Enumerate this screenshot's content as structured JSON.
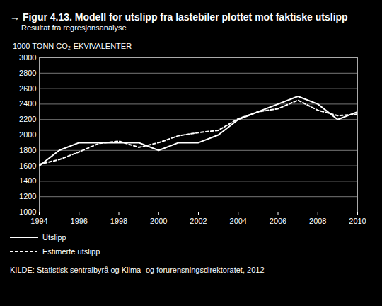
{
  "chart_data": {
    "type": "line",
    "title": "→ Figur 4.13. Modell for utslipp fra lastebiler plottet mot faktiske utslipp",
    "subtitle": "Resultat fra regresjonsanalyse",
    "y_label": "1000 TONN CO₂-EKVIVALENTER",
    "source": "KILDE: Statistisk sentralbyrå og Klima- og forurensningsdirektoratet, 2012",
    "x": [
      1994,
      1995,
      1996,
      1997,
      1998,
      1999,
      2000,
      2001,
      2002,
      2003,
      2004,
      2005,
      2006,
      2007,
      2008,
      2009,
      2010
    ],
    "series": [
      {
        "name": "Utslipp",
        "color": "#ffffff",
        "line_style": "solid",
        "values": [
          1600,
          1800,
          1900,
          1900,
          1900,
          1900,
          1800,
          1900,
          1900,
          2000,
          2200,
          2300,
          2400,
          2500,
          2400,
          2200,
          2300
        ]
      },
      {
        "name": "Estimerte utslipp",
        "color": "#ffffff",
        "line_style": "dashed",
        "values": [
          1620,
          1680,
          1780,
          1890,
          1920,
          1840,
          1900,
          1990,
          2030,
          2060,
          2210,
          2300,
          2340,
          2450,
          2320,
          2250,
          2270
        ]
      }
    ],
    "xlim": [
      1994,
      2010
    ],
    "xticks": [
      1994,
      1996,
      1998,
      2000,
      2002,
      2004,
      2006,
      2008,
      2010
    ],
    "ylim": [
      1000,
      3000
    ],
    "yticks": [
      1000,
      1200,
      1400,
      1600,
      1800,
      2000,
      2200,
      2400,
      2600,
      2800,
      3000
    ],
    "grid": true,
    "legend": "bottom-left"
  }
}
